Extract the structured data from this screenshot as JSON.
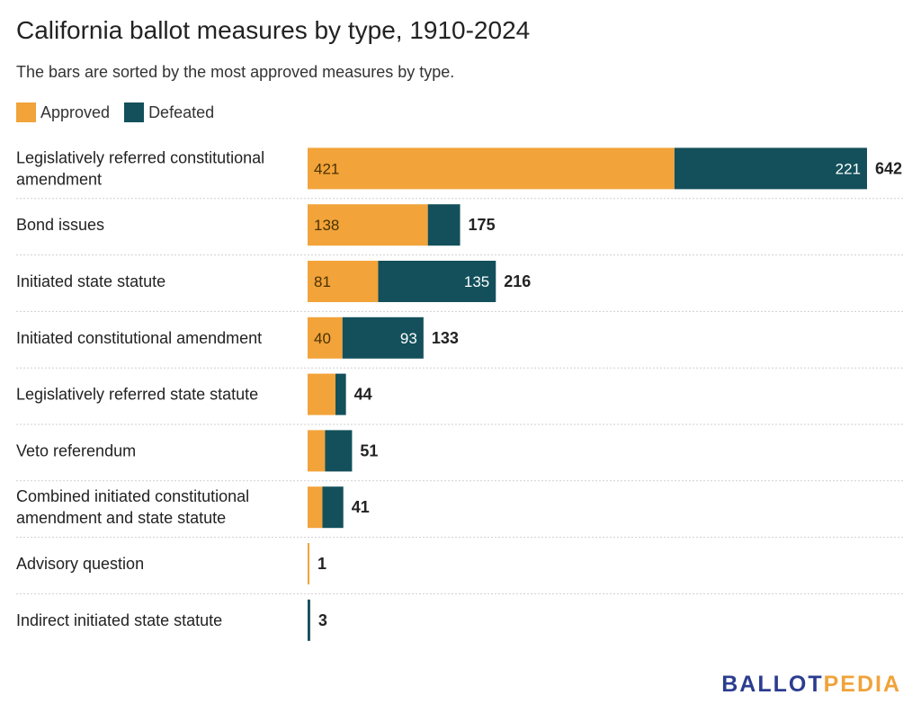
{
  "title": "California ballot measures by type, 1910-2024",
  "subtitle": "The bars are sorted by the most approved measures by type.",
  "legend": [
    {
      "label": "Approved",
      "color": "#f2a33a"
    },
    {
      "label": "Defeated",
      "color": "#13505b"
    }
  ],
  "brand": {
    "part1": "BALLOT",
    "part2": "PEDIA"
  },
  "chart_data": {
    "type": "bar",
    "orientation": "horizontal",
    "stacked": true,
    "categories": [
      [
        "Legislatively referred constitutional",
        "amendment"
      ],
      [
        "Bond issues"
      ],
      [
        "Initiated state statute"
      ],
      [
        "Initiated constitutional amendment"
      ],
      [
        "Legislatively referred state statute"
      ],
      [
        "Veto referendum"
      ],
      [
        "Combined initiated constitutional",
        "amendment and state statute"
      ],
      [
        "Advisory question"
      ],
      [
        "Indirect initiated state statute"
      ]
    ],
    "series": [
      {
        "name": "Approved",
        "color": "#f2a33a",
        "values": [
          421,
          138,
          81,
          40,
          32,
          20,
          17,
          1,
          0
        ]
      },
      {
        "name": "Defeated",
        "color": "#13505b",
        "values": [
          221,
          37,
          135,
          93,
          12,
          31,
          24,
          0,
          3
        ]
      }
    ],
    "totals": [
      642,
      175,
      216,
      133,
      44,
      51,
      41,
      1,
      3
    ],
    "segment_labels": {
      "approved": [
        "421",
        "138",
        "81",
        "40",
        "",
        "",
        "",
        "",
        ""
      ],
      "defeated": [
        "221",
        "",
        "135",
        "93",
        "",
        "",
        "",
        "",
        ""
      ]
    },
    "xlim": [
      0,
      642
    ],
    "grid": false,
    "legend_position": "top-left"
  }
}
